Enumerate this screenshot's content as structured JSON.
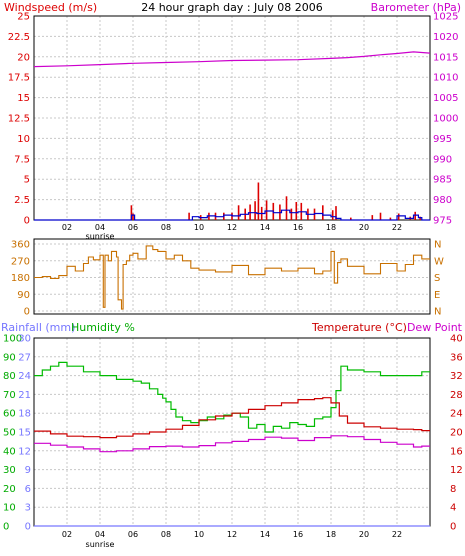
{
  "chart_data": [
    {
      "type": "line",
      "title": "24 hour graph day : July 08 2006",
      "left_label": "Windspeed (m/s)",
      "right_label": "Barometer (hPa)",
      "x_ticks": [
        "02",
        "04",
        "06",
        "08",
        "10",
        "12",
        "14",
        "16",
        "18",
        "20",
        "22"
      ],
      "x_note": "sunrise",
      "y_left": {
        "ticks": [
          0,
          2.5,
          5,
          7.5,
          10,
          12.5,
          15,
          17.5,
          20,
          22.5,
          25
        ],
        "labels": [
          "0",
          "2.5",
          "5",
          "7.5",
          "10",
          "12.5",
          "15",
          "17.5",
          "20",
          "22.5",
          "25"
        ],
        "range": [
          0,
          25
        ]
      },
      "y_right": {
        "ticks": [
          975,
          980,
          985,
          990,
          995,
          1000,
          1005,
          1010,
          1015,
          1020,
          1025
        ],
        "labels": [
          "975",
          "980",
          "985",
          "990",
          "995",
          "1000",
          "1005",
          "1010",
          "1015",
          "1020",
          "1025"
        ],
        "range": [
          975,
          1025
        ]
      },
      "colors": {
        "windspeed": "#0000cc",
        "gust": "#dd0000",
        "barometer": "#cc00cc",
        "grid": "#bbbbbb"
      },
      "series": [
        {
          "kind": "gust",
          "axis": "left",
          "hours": [
            5.9,
            6.0,
            9.4,
            10.1,
            10.6,
            11.0,
            11.5,
            12.0,
            12.4,
            12.8,
            13.1,
            13.4,
            13.6,
            13.8,
            14.1,
            14.5,
            14.9,
            15.3,
            15.6,
            15.9,
            16.2,
            16.6,
            17.0,
            17.5,
            18.1,
            18.3,
            19.2,
            20.5,
            21.0,
            21.6,
            22.1,
            22.8,
            23.1,
            23.4
          ],
          "values": [
            1.8,
            0.8,
            0.9,
            0.6,
            0.9,
            0.9,
            0.9,
            0.9,
            1.8,
            1.4,
            1.9,
            2.3,
            4.6,
            1.6,
            2.4,
            2.1,
            1.9,
            2.9,
            1.4,
            2.2,
            2.1,
            1.4,
            1.4,
            1.8,
            1.2,
            1.7,
            0.3,
            0.6,
            0.9,
            0.3,
            0.8,
            0.4,
            1.0,
            0.4
          ]
        },
        {
          "kind": "windspeed",
          "axis": "left",
          "hours": [
            0,
            5.8,
            5.9,
            6.1,
            9.3,
            9.6,
            10.0,
            10.5,
            11.0,
            11.5,
            12.0,
            12.5,
            13.0,
            13.5,
            14.0,
            14.5,
            15.0,
            15.5,
            16.0,
            16.5,
            17.0,
            17.5,
            18.0,
            18.3,
            18.6,
            21.5,
            22.0,
            22.5,
            23.0,
            23.3,
            23.5
          ],
          "values": [
            0,
            0,
            0.6,
            0,
            0,
            0.4,
            0.3,
            0.5,
            0.4,
            0.6,
            0.5,
            0.7,
            0.9,
            0.8,
            1.1,
            0.9,
            1.2,
            0.9,
            1.0,
            0.7,
            0.8,
            0.6,
            0.4,
            0.2,
            0,
            0,
            0.5,
            0.2,
            0.6,
            0.3,
            0
          ]
        },
        {
          "kind": "barometer",
          "axis": "right",
          "hours": [
            0,
            2,
            4,
            6,
            8,
            10,
            12,
            14,
            16,
            18,
            19,
            20,
            21,
            22,
            23,
            24
          ],
          "values": [
            1012.6,
            1012.8,
            1013.1,
            1013.4,
            1013.6,
            1013.8,
            1014.1,
            1014.2,
            1014.3,
            1014.6,
            1014.8,
            1015.1,
            1015.5,
            1015.8,
            1016.2,
            1015.9
          ]
        }
      ]
    },
    {
      "type": "line",
      "x_ticks": [
        "02",
        "04",
        "06",
        "08",
        "10",
        "12",
        "14",
        "16",
        "18",
        "20",
        "22"
      ],
      "x_labels_hidden": true,
      "y_left": {
        "ticks": [
          0,
          90,
          180,
          270,
          360
        ],
        "labels": [
          "0",
          "90",
          "180",
          "270",
          "360"
        ],
        "range": [
          0,
          360
        ]
      },
      "y_right": {
        "ticks": [
          0,
          90,
          180,
          270,
          360
        ],
        "labels": [
          "N",
          "E",
          "S",
          "W",
          "N"
        ],
        "range": [
          0,
          360
        ]
      },
      "colors": {
        "direction": "#c87000",
        "grid": "#bbbbbb"
      },
      "series": [
        {
          "kind": "direction",
          "axis": "left",
          "hours": [
            0,
            0.5,
            1.0,
            1.5,
            2.0,
            2.5,
            3.0,
            3.3,
            3.6,
            4.0,
            4.2,
            4.3,
            4.5,
            4.7,
            5.0,
            5.1,
            5.3,
            5.4,
            5.6,
            5.8,
            6.0,
            6.3,
            6.8,
            7.2,
            7.5,
            8.0,
            8.5,
            9.0,
            9.5,
            10.0,
            11.0,
            12.0,
            13.0,
            14.0,
            15.0,
            16.0,
            17.0,
            17.5,
            18.0,
            18.2,
            18.4,
            18.6,
            19.0,
            20.0,
            21.0,
            22.0,
            22.5,
            23.0,
            23.5
          ],
          "values": [
            180,
            185,
            175,
            190,
            240,
            215,
            255,
            290,
            275,
            300,
            20,
            300,
            270,
            320,
            290,
            60,
            10,
            250,
            270,
            300,
            310,
            280,
            350,
            330,
            320,
            280,
            300,
            270,
            230,
            220,
            210,
            245,
            195,
            230,
            215,
            230,
            200,
            215,
            320,
            150,
            260,
            280,
            240,
            200,
            255,
            215,
            250,
            300,
            280
          ]
        }
      ]
    },
    {
      "type": "line",
      "left_label": "Rainfall (mm)",
      "humidity_label": "Humidity %",
      "right_label": "Temperature (°C)",
      "dewpoint_label": "Dew Point",
      "x_ticks": [
        "02",
        "04",
        "06",
        "08",
        "10",
        "12",
        "14",
        "16",
        "18",
        "20",
        "22"
      ],
      "x_note": "sunrise",
      "y_rain": {
        "ticks": [
          0,
          3,
          6,
          9,
          12,
          15,
          18,
          21,
          24,
          27,
          30
        ],
        "labels": [
          "0",
          "3",
          "6",
          "9",
          "12",
          "15",
          "18",
          "21",
          "24",
          "27",
          "30"
        ],
        "range": [
          0,
          30
        ]
      },
      "y_humidity": {
        "ticks": [
          0,
          10,
          20,
          30,
          40,
          50,
          60,
          70,
          80,
          90,
          100
        ],
        "labels": [
          "0",
          "10",
          "20",
          "30",
          "40",
          "50",
          "60",
          "70",
          "80",
          "90",
          "100"
        ],
        "range": [
          0,
          100
        ]
      },
      "y_temperature": {
        "ticks": [
          0,
          4,
          8,
          12,
          16,
          20,
          24,
          28,
          32,
          36,
          40
        ],
        "labels": [
          "0",
          "4",
          "8",
          "12",
          "16",
          "20",
          "24",
          "28",
          "32",
          "36",
          "40"
        ],
        "range": [
          0,
          40
        ]
      },
      "colors": {
        "rainfall": "#7777ff",
        "humidity": "#00bb00",
        "temperature": "#cc0000",
        "dewpoint": "#cc00cc",
        "grid": "#bbbbbb"
      },
      "series": [
        {
          "kind": "humidity",
          "axis": "humidity",
          "hours": [
            0,
            0.5,
            1.0,
            1.5,
            2.0,
            3.0,
            4.0,
            5.0,
            6.0,
            6.5,
            7.0,
            7.5,
            7.8,
            8.0,
            8.3,
            8.6,
            9.0,
            9.5,
            10.0,
            10.5,
            11.0,
            11.5,
            12.0,
            12.5,
            13.0,
            13.5,
            14.0,
            14.5,
            15.0,
            15.5,
            16.0,
            16.5,
            17.0,
            17.5,
            18.0,
            18.3,
            18.6,
            19.0,
            20.0,
            21.0,
            22.0,
            23.0,
            23.5
          ],
          "values": [
            80,
            83,
            85,
            87,
            85,
            82,
            80,
            78,
            77,
            76,
            73,
            70,
            68,
            66,
            62,
            58,
            56,
            55,
            56,
            58,
            57,
            59,
            60,
            58,
            52,
            54,
            50,
            53,
            52,
            55,
            54,
            53,
            57,
            58,
            63,
            72,
            85,
            83,
            82,
            80,
            80,
            80,
            82
          ]
        },
        {
          "kind": "temperature",
          "axis": "temperature",
          "hours": [
            0,
            1,
            2,
            3,
            4,
            5,
            6,
            7,
            8,
            9,
            10,
            11,
            12,
            13,
            14,
            15,
            16,
            17,
            17.5,
            18,
            18.5,
            19,
            20,
            21,
            22,
            23,
            23.5
          ],
          "values": [
            20.2,
            19.6,
            19.1,
            19.0,
            18.8,
            19.1,
            19.6,
            20.0,
            20.6,
            21.4,
            22.6,
            23.4,
            24.0,
            24.8,
            25.6,
            26.2,
            26.9,
            27.1,
            27.3,
            26.2,
            23.4,
            21.9,
            21.1,
            20.8,
            20.6,
            20.5,
            20.3
          ]
        },
        {
          "kind": "dewpoint",
          "axis": "temperature",
          "hours": [
            0,
            1,
            2,
            3,
            4,
            5,
            6,
            7,
            8,
            9,
            10,
            11,
            12,
            13,
            14,
            15,
            16,
            17,
            18,
            19,
            20,
            21,
            22,
            23,
            23.5
          ],
          "values": [
            17.6,
            17.2,
            16.8,
            16.4,
            15.8,
            16.0,
            16.4,
            16.9,
            17.0,
            16.8,
            17.1,
            17.7,
            18.0,
            18.4,
            18.9,
            18.7,
            18.2,
            18.8,
            19.2,
            19.0,
            18.4,
            17.8,
            17.4,
            16.8,
            17.0
          ]
        },
        {
          "kind": "rainfall",
          "axis": "rain",
          "hours": [
            0,
            24
          ],
          "values": [
            0,
            0
          ]
        }
      ]
    }
  ]
}
